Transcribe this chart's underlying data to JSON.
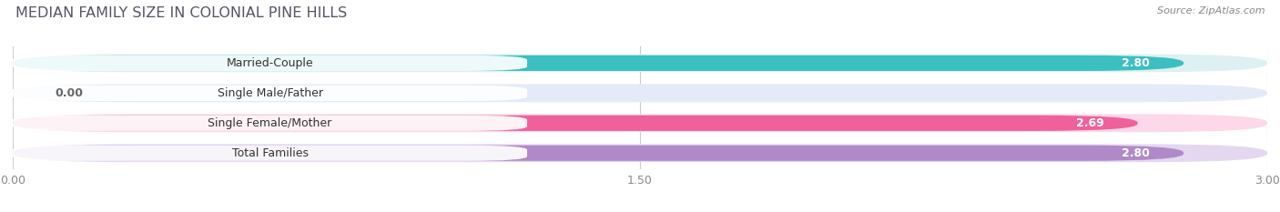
{
  "title": "MEDIAN FAMILY SIZE IN COLONIAL PINE HILLS",
  "source": "Source: ZipAtlas.com",
  "categories": [
    "Married-Couple",
    "Single Male/Father",
    "Single Female/Mother",
    "Total Families"
  ],
  "values": [
    2.8,
    0.0,
    2.69,
    2.8
  ],
  "bar_colors": [
    "#3bbfc0",
    "#aabfe8",
    "#f0609a",
    "#b08ac8"
  ],
  "bar_track_colors": [
    "#ddf0f2",
    "#e4eaf8",
    "#fcd8e8",
    "#e4d8f0"
  ],
  "xlim": [
    0,
    3.0
  ],
  "xticks": [
    0.0,
    1.5,
    3.0
  ],
  "xticklabels": [
    "0.00",
    "1.50",
    "3.00"
  ],
  "background_color": "#ffffff",
  "title_color": "#555566",
  "source_color": "#888888"
}
